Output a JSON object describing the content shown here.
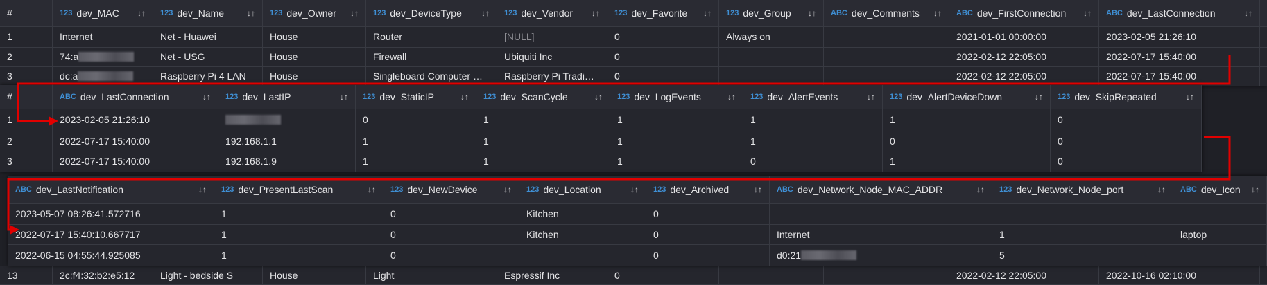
{
  "colors": {
    "arrow": "#e10000",
    "type_badge": "#3f8fd4",
    "background": "#1f2026"
  },
  "panels": [
    {
      "columns": [
        {
          "type": "",
          "name": "#"
        },
        {
          "type": "123",
          "name": "dev_MAC"
        },
        {
          "type": "123",
          "name": "dev_Name"
        },
        {
          "type": "123",
          "name": "dev_Owner"
        },
        {
          "type": "123",
          "name": "dev_DeviceType"
        },
        {
          "type": "123",
          "name": "dev_Vendor"
        },
        {
          "type": "123",
          "name": "dev_Favorite"
        },
        {
          "type": "123",
          "name": "dev_Group"
        },
        {
          "type": "ABC",
          "name": "dev_Comments"
        },
        {
          "type": "ABC",
          "name": "dev_FirstConnection"
        },
        {
          "type": "ABC",
          "name": "dev_LastConnection"
        }
      ],
      "rows": [
        [
          "1",
          "Internet",
          "Net - Huawei",
          "House",
          "Router",
          "[NULL]",
          "0",
          "Always on",
          "",
          "2021-01-01 00:00:00",
          "2023-02-05 21:26:10"
        ],
        [
          "2",
          "74:a",
          "Net - USG",
          "House",
          "Firewall",
          "Ubiquiti Inc",
          "0",
          "",
          "",
          "2022-02-12 22:05:00",
          "2022-07-17 15:40:00"
        ],
        [
          "3",
          "dc:a",
          "Raspberry Pi 4 LAN",
          "House",
          "Singleboard Computer …",
          "Raspberry Pi Tradi…",
          "0",
          "",
          "",
          "2022-02-12 22:05:00",
          "2022-07-17 15:40:00"
        ]
      ]
    },
    {
      "columns": [
        {
          "type": "",
          "name": "#"
        },
        {
          "type": "ABC",
          "name": "dev_LastConnection"
        },
        {
          "type": "123",
          "name": "dev_LastIP"
        },
        {
          "type": "123",
          "name": "dev_StaticIP"
        },
        {
          "type": "123",
          "name": "dev_ScanCycle"
        },
        {
          "type": "123",
          "name": "dev_LogEvents"
        },
        {
          "type": "123",
          "name": "dev_AlertEvents"
        },
        {
          "type": "123",
          "name": "dev_AlertDeviceDown"
        },
        {
          "type": "123",
          "name": "dev_SkipRepeated"
        }
      ],
      "rows": [
        [
          "1",
          "2023-02-05 21:26:10",
          "",
          "0",
          "1",
          "1",
          "1",
          "1",
          "0"
        ],
        [
          "2",
          "2022-07-17 15:40:00",
          "192.168.1.1",
          "1",
          "1",
          "1",
          "1",
          "0",
          "0"
        ],
        [
          "3",
          "2022-07-17 15:40:00",
          "192.168.1.9",
          "1",
          "1",
          "1",
          "0",
          "1",
          "0"
        ]
      ]
    },
    {
      "columns": [
        {
          "type": "ABC",
          "name": "dev_LastNotification"
        },
        {
          "type": "123",
          "name": "dev_PresentLastScan"
        },
        {
          "type": "123",
          "name": "dev_NewDevice"
        },
        {
          "type": "123",
          "name": "dev_Location"
        },
        {
          "type": "123",
          "name": "dev_Archived"
        },
        {
          "type": "ABC",
          "name": "dev_Network_Node_MAC_ADDR"
        },
        {
          "type": "123",
          "name": "dev_Network_Node_port"
        },
        {
          "type": "ABC",
          "name": "dev_Icon"
        }
      ],
      "rows": [
        [
          "2023-05-07 08:26:41.572716",
          "1",
          "0",
          "Kitchen",
          "0",
          "",
          "",
          ""
        ],
        [
          "2022-07-17 15:40:10.667717",
          "1",
          "0",
          "Kitchen",
          "0",
          "Internet",
          "1",
          "laptop"
        ],
        [
          "2022-06-15 04:55:44.925085",
          "1",
          "0",
          "",
          "0",
          "d0:21",
          "5",
          ""
        ]
      ]
    }
  ],
  "bottom_row": [
    "13",
    "2c:f4:32:b2:e5:12",
    "Light - bedside S",
    "House",
    "Light",
    "Espressif Inc",
    "0",
    "",
    "",
    "2022-02-12 22:05:00",
    "2022-10-16 02:10:00"
  ],
  "sort_icon": "sort-arrows-icon"
}
